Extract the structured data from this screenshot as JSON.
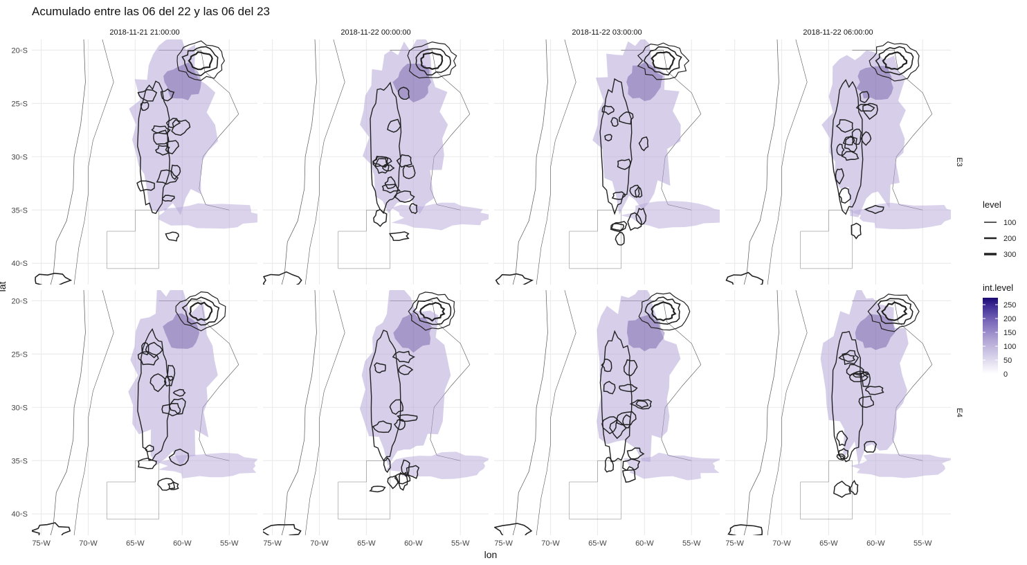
{
  "title": "Acumulado entre las 06 del 22 y las 06 del 23",
  "columns": [
    {
      "label": "2018-11-21 21:00:00"
    },
    {
      "label": "2018-11-22 00:00:00"
    },
    {
      "label": "2018-11-22 03:00:00"
    },
    {
      "label": "2018-11-22 06:00:00"
    }
  ],
  "rows": [
    {
      "label": "E3"
    },
    {
      "label": "E4"
    }
  ],
  "axes": {
    "x_label": "lon",
    "y_label": "lat",
    "x_ticks": [
      "75◦W",
      "70◦W",
      "65◦W",
      "60◦W",
      "55◦W"
    ],
    "y_ticks": [
      "20◦S",
      "25◦S",
      "30◦S",
      "35◦S",
      "40◦S"
    ],
    "lon_range": [
      -76,
      -52
    ],
    "lat_range": [
      -19,
      -42
    ]
  },
  "legend_level": {
    "title": "level",
    "entries": [
      {
        "label": "100",
        "width": 1
      },
      {
        "label": "200",
        "width": 2
      },
      {
        "label": "300",
        "width": 3
      }
    ]
  },
  "legend_int_level": {
    "title": "int.level",
    "ticks": [
      "250",
      "200",
      "150",
      "100",
      "50",
      "0"
    ],
    "range": [
      0,
      275
    ],
    "colors": [
      "#ffffff",
      "#dcd6ec",
      "#b0a4d4",
      "#7766b8",
      "#3d2a93",
      "#1a0a72"
    ]
  },
  "colors": {
    "fill": "#b6a8d8",
    "fill_dark": "#4a338f",
    "contour": "#222222",
    "border": "#555555",
    "grid": "#ebebeb"
  }
}
